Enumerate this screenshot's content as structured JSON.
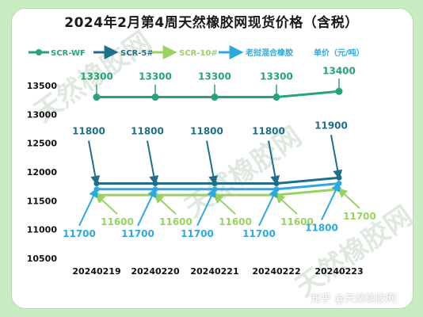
{
  "chart_data": {
    "type": "line",
    "title": "2024年2月第4周天然橡胶网现货价格（含税）",
    "categories": [
      "20240219",
      "20240220",
      "20240221",
      "20240222",
      "20240223"
    ],
    "ylim": [
      10500,
      13500
    ],
    "yticks": [
      10500,
      11000,
      11500,
      12000,
      12500,
      13000,
      13500
    ],
    "legend_position": "top",
    "legend_unit": "单价（元/吨）",
    "series": [
      {
        "name": "SCR-WF",
        "values": [
          13300,
          13300,
          13300,
          13300,
          13400
        ],
        "color": "#27a37a"
      },
      {
        "name": "SCR-5#",
        "values": [
          11800,
          11800,
          11800,
          11800,
          11900
        ],
        "color": "#1f6f8b"
      },
      {
        "name": "SCR-10#",
        "values": [
          11600,
          11600,
          11600,
          11600,
          11700
        ],
        "color": "#97d35e"
      },
      {
        "name": "老挝混合橡胶",
        "values": [
          11700,
          11700,
          11700,
          11700,
          11800
        ],
        "color": "#2ea9e0"
      }
    ]
  },
  "watermark": "天然橡胶网",
  "credit": "知乎 @天然橡胶网"
}
